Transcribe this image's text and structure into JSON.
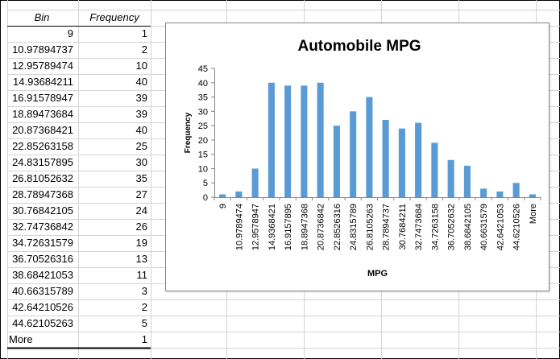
{
  "table": {
    "headers": {
      "bin": "Bin",
      "frequency": "Frequency"
    },
    "rows": [
      {
        "bin": "9",
        "frequency": "1"
      },
      {
        "bin": "10.97894737",
        "frequency": "2"
      },
      {
        "bin": "12.95789474",
        "frequency": "10"
      },
      {
        "bin": "14.93684211",
        "frequency": "40"
      },
      {
        "bin": "16.91578947",
        "frequency": "39"
      },
      {
        "bin": "18.89473684",
        "frequency": "39"
      },
      {
        "bin": "20.87368421",
        "frequency": "40"
      },
      {
        "bin": "22.85263158",
        "frequency": "25"
      },
      {
        "bin": "24.83157895",
        "frequency": "30"
      },
      {
        "bin": "26.81052632",
        "frequency": "35"
      },
      {
        "bin": "28.78947368",
        "frequency": "27"
      },
      {
        "bin": "30.76842105",
        "frequency": "24"
      },
      {
        "bin": "32.74736842",
        "frequency": "26"
      },
      {
        "bin": "34.72631579",
        "frequency": "19"
      },
      {
        "bin": "36.70526316",
        "frequency": "13"
      },
      {
        "bin": "38.68421053",
        "frequency": "11"
      },
      {
        "bin": "40.66315789",
        "frequency": "3"
      },
      {
        "bin": "42.64210526",
        "frequency": "2"
      },
      {
        "bin": "44.62105263",
        "frequency": "5"
      },
      {
        "bin": "More",
        "frequency": "1"
      }
    ]
  },
  "chart_data": {
    "type": "bar",
    "title": "Automobile MPG",
    "xlabel": "MPG",
    "ylabel": "Frequency",
    "categories": [
      "9",
      "10.9789474",
      "12.9578947",
      "14.9368421",
      "16.9157895",
      "18.8947368",
      "20.8736842",
      "22.8526316",
      "24.8315789",
      "26.8105263",
      "28.7894737",
      "30.7684211",
      "32.7473684",
      "34.7263158",
      "36.7052632",
      "38.6842105",
      "40.6631579",
      "42.6421053",
      "44.6210526",
      "More"
    ],
    "values": [
      1,
      2,
      10,
      40,
      39,
      39,
      40,
      25,
      30,
      35,
      27,
      24,
      26,
      19,
      13,
      11,
      3,
      2,
      5,
      1
    ],
    "ylim": [
      0,
      45
    ],
    "yticks": [
      0,
      5,
      10,
      15,
      20,
      25,
      30,
      35,
      40,
      45
    ],
    "grid": false,
    "legend": "none",
    "bar_color": "#5b9bd5"
  }
}
